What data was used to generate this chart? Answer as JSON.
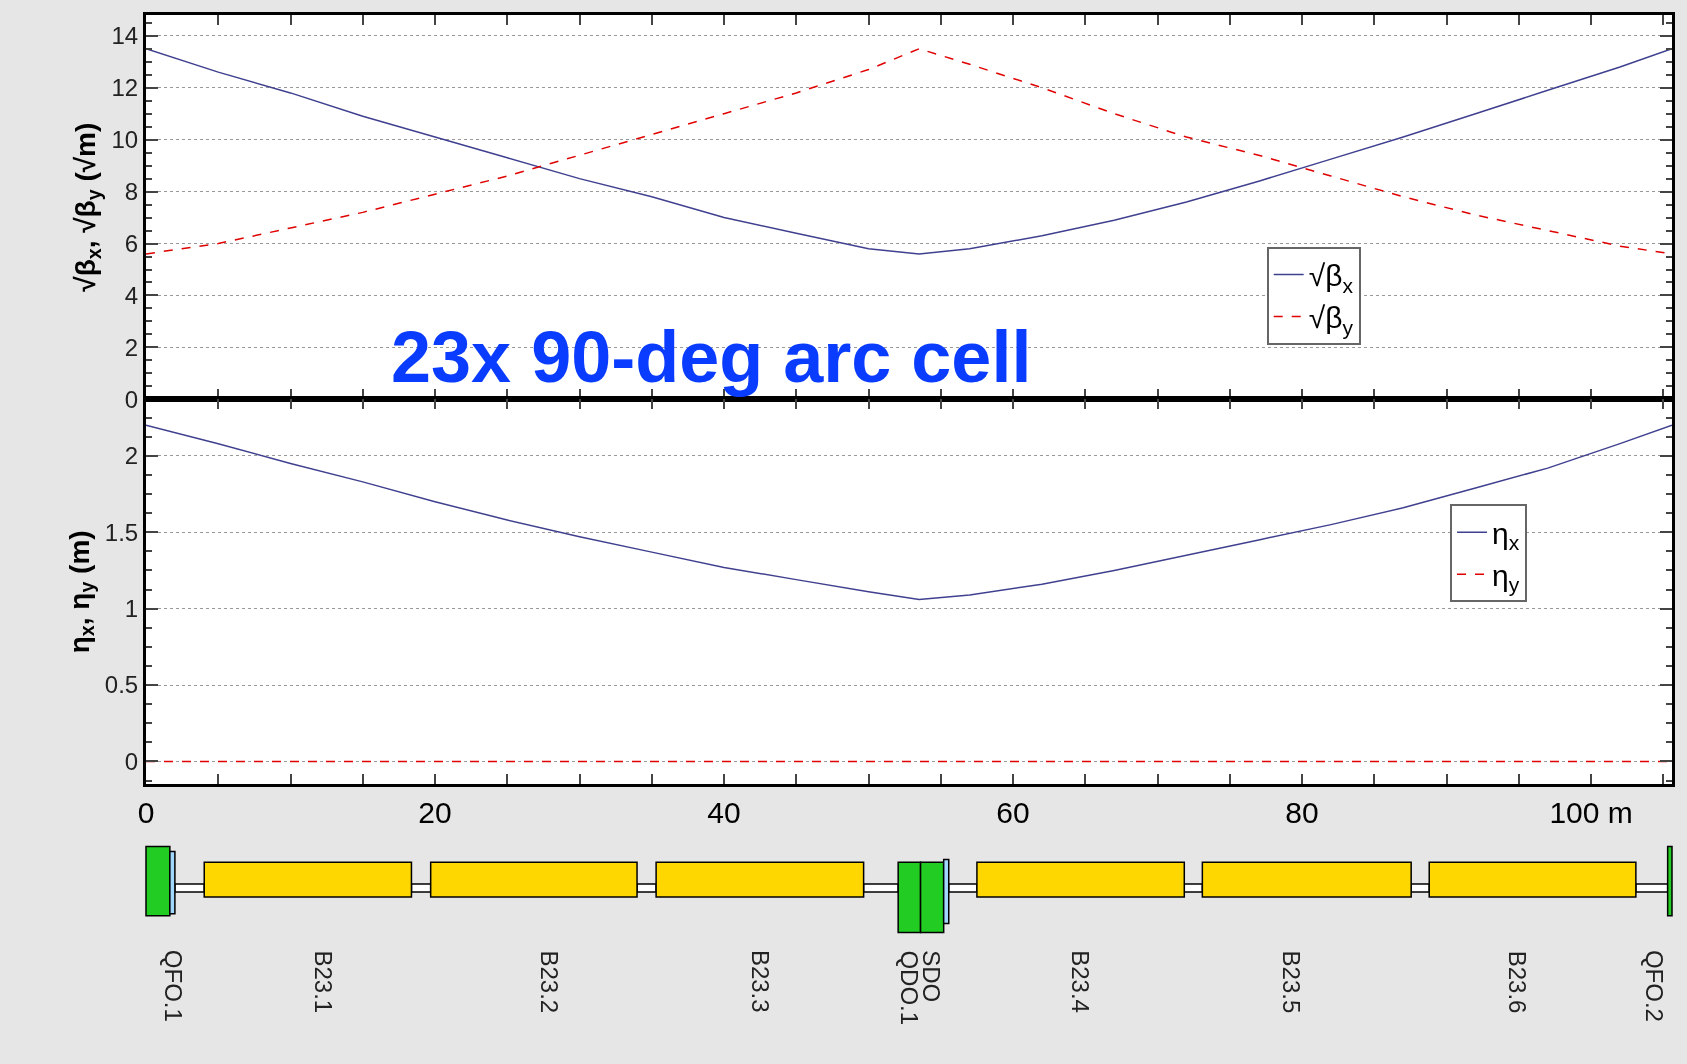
{
  "chart_data": [
    {
      "type": "line",
      "ylabel": "√β$_{x}$, √β$_{y}$ (√m)",
      "xlim": [
        0,
        105.6
      ],
      "ylim": [
        0,
        14.8
      ],
      "xticks": [
        {
          "value": 0,
          "label": null
        },
        {
          "value": 5,
          "label": null
        },
        {
          "value": 10,
          "label": null
        },
        {
          "value": 15,
          "label": null
        },
        {
          "value": 20,
          "label": null
        },
        {
          "value": 25,
          "label": null
        },
        {
          "value": 30,
          "label": null
        },
        {
          "value": 35,
          "label": null
        },
        {
          "value": 40,
          "label": null
        },
        {
          "value": 45,
          "label": null
        },
        {
          "value": 50,
          "label": null
        },
        {
          "value": 55,
          "label": null
        },
        {
          "value": 60,
          "label": null
        },
        {
          "value": 65,
          "label": null
        },
        {
          "value": 70,
          "label": null
        },
        {
          "value": 75,
          "label": null
        },
        {
          "value": 80,
          "label": null
        },
        {
          "value": 85,
          "label": null
        },
        {
          "value": 90,
          "label": null
        },
        {
          "value": 95,
          "label": null
        },
        {
          "value": 100,
          "label": null
        },
        {
          "value": 105,
          "label": null
        }
      ],
      "yticks": [
        0,
        2,
        4,
        6,
        8,
        10,
        12,
        14
      ],
      "grid": "y",
      "legend": "right",
      "tick_labels": "y",
      "marker": "none",
      "annotations": [
        "23x 90-deg arc cell"
      ],
      "x": [
        0,
        5,
        10,
        15,
        20,
        25,
        30,
        35,
        40,
        45,
        50,
        53.5,
        57,
        62,
        67,
        72,
        77,
        82,
        87,
        92,
        97,
        102,
        105.6
      ],
      "series": [
        {
          "name": "√β$_{x}$",
          "color": "#404090",
          "line_style": "solid",
          "values": [
            13.5,
            12.6,
            11.8,
            10.9,
            10.1,
            9.3,
            8.5,
            7.8,
            7.0,
            6.4,
            5.8,
            5.6,
            5.8,
            6.3,
            6.9,
            7.6,
            8.4,
            9.25,
            10.1,
            11.0,
            11.9,
            12.8,
            13.5
          ]
        },
        {
          "name": "√β$_{y}$",
          "color": "#e00000",
          "line_style": "dashed",
          "values": [
            5.6,
            6.0,
            6.6,
            7.2,
            7.9,
            8.6,
            9.4,
            10.2,
            11.0,
            11.8,
            12.7,
            13.5,
            12.9,
            12.0,
            11.0,
            10.1,
            9.4,
            8.6,
            7.8,
            7.1,
            6.5,
            5.9,
            5.6
          ]
        }
      ]
    },
    {
      "type": "line",
      "ylabel": "η$_{x}$, η$_{y}$ (m)",
      "xlim": [
        0,
        105.6
      ],
      "ylim": [
        -0.15,
        2.37
      ],
      "xticks": [
        0,
        {
          "value": 5,
          "label": null
        },
        {
          "value": 10,
          "label": null
        },
        {
          "value": 15,
          "label": null
        },
        20,
        {
          "value": 25,
          "label": null
        },
        {
          "value": 30,
          "label": null
        },
        {
          "value": 35,
          "label": null
        },
        40,
        {
          "value": 45,
          "label": null
        },
        {
          "value": 50,
          "label": null
        },
        {
          "value": 55,
          "label": null
        },
        60,
        {
          "value": 65,
          "label": null
        },
        {
          "value": 70,
          "label": null
        },
        {
          "value": 75,
          "label": null
        },
        80,
        {
          "value": 85,
          "label": null
        },
        {
          "value": 90,
          "label": null
        },
        {
          "value": 95,
          "label": null
        },
        {
          "value": 100,
          "label": "100 m"
        },
        {
          "value": 105,
          "label": null
        }
      ],
      "yticks": [
        0,
        0.5,
        1,
        1.5,
        2
      ],
      "grid": "y",
      "legend": "top right",
      "marker": "none",
      "series": [
        {
          "name": "η$_{x}$",
          "color": "#404090",
          "line_style": "solid",
          "x": [
            0,
            5,
            10,
            15,
            20,
            25,
            30,
            35,
            40,
            45,
            50,
            53.5,
            57,
            62,
            67,
            72,
            77,
            82,
            87,
            92,
            97,
            102,
            105.6
          ],
          "values": [
            2.2,
            2.08,
            1.95,
            1.83,
            1.7,
            1.58,
            1.47,
            1.37,
            1.27,
            1.19,
            1.11,
            1.06,
            1.09,
            1.16,
            1.25,
            1.35,
            1.45,
            1.55,
            1.66,
            1.79,
            1.92,
            2.08,
            2.2
          ]
        },
        {
          "name": "η$_{y}$",
          "color": "#e00000",
          "line_style": "dashed",
          "x": [
            0,
            105.6
          ],
          "values": [
            0,
            0
          ]
        }
      ],
      "annotations": [
        "QFO.1",
        "B23.1",
        "B23.2",
        "B23.3",
        "QDO.1",
        "SDO",
        "B23.4",
        "B23.5",
        "B23.6",
        "QFO.2"
      ]
    }
  ]
}
